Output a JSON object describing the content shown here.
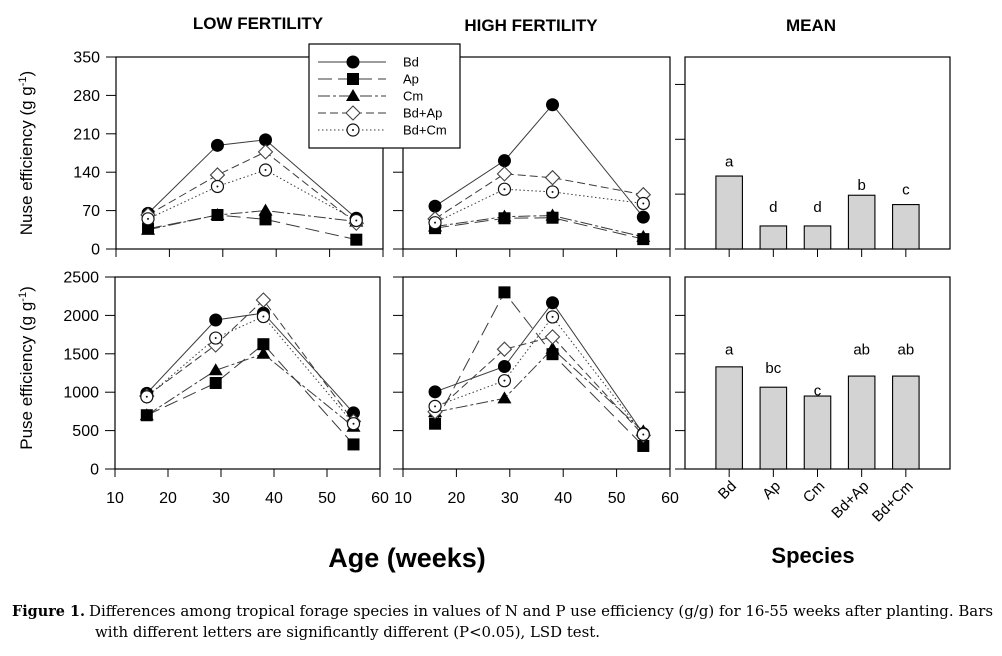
{
  "figure": {
    "caption": {
      "label": "Figure 1.",
      "line1": "Differences among tropical forage species in values of N and P use efficiency (g/g) for 16-55 weeks after planting. Bars",
      "line2": "with different letters are significantly different (P<0.05), LSD test."
    }
  },
  "chart_data": [
    {
      "id": "nuse-low",
      "type": "line",
      "title": "LOW FERTILITY",
      "ylabel": {
        "text": "Nuse efficiency (g g",
        "sup": "-1",
        "suffix": ")"
      },
      "xlabel": "",
      "x": [
        16,
        29,
        38,
        55
      ],
      "xlim": [
        10,
        60
      ],
      "xticks": [
        10,
        20,
        30,
        40,
        50,
        60
      ],
      "xtick_labels": null,
      "ylim": [
        0,
        350
      ],
      "yticks": [
        0,
        70,
        140,
        210,
        280,
        350
      ],
      "ytick_labels": [
        "0",
        "70",
        "140",
        "210",
        "280",
        "350"
      ],
      "grid": false,
      "legend": {
        "placement": "top-right",
        "entries": [
          "Bd",
          "Ap",
          "Cm",
          "Bd+Ap",
          "Bd+Cm"
        ]
      },
      "series": [
        {
          "name": "Bd",
          "marker": "filled-circle",
          "line": "solid",
          "values": [
            65,
            189,
            199,
            56
          ]
        },
        {
          "name": "Ap",
          "marker": "filled-square",
          "line": "long-dash",
          "values": [
            37,
            62,
            54,
            17
          ]
        },
        {
          "name": "Cm",
          "marker": "filled-triangle",
          "line": "dash-dot",
          "values": [
            35,
            62,
            70,
            50
          ]
        },
        {
          "name": "Bd+Ap",
          "marker": "open-diamond",
          "line": "dash",
          "values": [
            62,
            135,
            177,
            47
          ]
        },
        {
          "name": "Bd+Cm",
          "marker": "open-circle-dot",
          "line": "dotted",
          "values": [
            55,
            114,
            144,
            52
          ]
        }
      ]
    },
    {
      "id": "nuse-high",
      "type": "line",
      "title": "HIGH FERTILITY",
      "xlabel": "",
      "x": [
        16,
        29,
        38,
        55
      ],
      "xlim": [
        10,
        60
      ],
      "xticks": [
        10,
        20,
        30,
        40,
        50,
        60
      ],
      "xtick_labels": null,
      "ylim": [
        0,
        350
      ],
      "yticks": [
        0,
        70,
        140,
        210,
        280,
        350
      ],
      "ytick_labels": null,
      "grid": false,
      "series": [
        {
          "name": "Bd",
          "marker": "filled-circle",
          "line": "solid",
          "values": [
            78,
            161,
            263,
            58
          ]
        },
        {
          "name": "Ap",
          "marker": "filled-square",
          "line": "long-dash",
          "values": [
            38,
            56,
            57,
            18
          ]
        },
        {
          "name": "Cm",
          "marker": "filled-triangle",
          "line": "dash-dot",
          "values": [
            41,
            59,
            61,
            22
          ]
        },
        {
          "name": "Bd+Ap",
          "marker": "open-diamond",
          "line": "dash",
          "values": [
            55,
            137,
            130,
            99
          ]
        },
        {
          "name": "Bd+Cm",
          "marker": "open-circle-dot",
          "line": "dotted",
          "values": [
            48,
            109,
            104,
            83
          ]
        }
      ]
    },
    {
      "id": "nuse-mean",
      "type": "bar",
      "title": "MEAN",
      "xlabel": "",
      "categories": [
        "Bd",
        "Ap",
        "Cm",
        "Bd+Ap",
        "Bd+Cm"
      ],
      "category_labels_shown": false,
      "values": [
        133,
        42,
        42,
        98,
        81
      ],
      "letters": [
        "a",
        "d",
        "d",
        "b",
        "c"
      ],
      "letter_y": [
        150,
        67,
        67,
        108,
        99
      ],
      "ylim": [
        0,
        350
      ],
      "yticks": [
        0,
        100,
        200,
        300
      ],
      "ytick_labels": null,
      "bar_color": "#d3d3d3",
      "grid": false
    },
    {
      "id": "puse-low",
      "type": "line",
      "title": "",
      "ylabel": {
        "text": "Puse efficiency (g g",
        "sup": "-1",
        "suffix": ")"
      },
      "xlabel": "Age (weeks)",
      "x": [
        16,
        29,
        38,
        55
      ],
      "xlim": [
        10,
        60
      ],
      "xticks": [
        10,
        20,
        30,
        40,
        50,
        60
      ],
      "xtick_labels": [
        "10",
        "20",
        "30",
        "40",
        "50",
        "60"
      ],
      "ylim": [
        0,
        2500
      ],
      "yticks": [
        0,
        500,
        1000,
        1500,
        2000,
        2500
      ],
      "ytick_labels": [
        "0",
        "500",
        "1000",
        "1500",
        "2000",
        "2500"
      ],
      "grid": false,
      "series": [
        {
          "name": "Bd",
          "marker": "filled-circle",
          "line": "solid",
          "values": [
            985,
            1940,
            2030,
            730
          ]
        },
        {
          "name": "Ap",
          "marker": "filled-square",
          "line": "long-dash",
          "values": [
            700,
            1120,
            1625,
            320
          ]
        },
        {
          "name": "Cm",
          "marker": "filled-triangle",
          "line": "dash-dot",
          "values": [
            700,
            1285,
            1500,
            550
          ]
        },
        {
          "name": "Bd+Ap",
          "marker": "open-diamond",
          "line": "dash",
          "values": [
            950,
            1615,
            2200,
            620
          ]
        },
        {
          "name": "Bd+Cm",
          "marker": "open-circle-dot",
          "line": "dotted",
          "values": [
            940,
            1705,
            1985,
            590
          ]
        }
      ]
    },
    {
      "id": "puse-high",
      "type": "line",
      "title": "",
      "xlabel": "Age (weeks)",
      "x": [
        16,
        29,
        38,
        55
      ],
      "xlim": [
        10,
        60
      ],
      "xticks": [
        10,
        20,
        30,
        40,
        50,
        60
      ],
      "xtick_labels": [
        "10",
        "20",
        "30",
        "40",
        "50",
        "60"
      ],
      "ylim": [
        0,
        2500
      ],
      "yticks": [
        0,
        500,
        1000,
        1500,
        2000,
        2500
      ],
      "ytick_labels": null,
      "grid": false,
      "series": [
        {
          "name": "Bd",
          "marker": "filled-circle",
          "line": "solid",
          "values": [
            1005,
            1335,
            2165,
            460
          ]
        },
        {
          "name": "Ap",
          "marker": "filled-square",
          "line": "long-dash",
          "values": [
            590,
            2300,
            1495,
            300
          ]
        },
        {
          "name": "Cm",
          "marker": "filled-triangle",
          "line": "dash-dot",
          "values": [
            740,
            920,
            1565,
            490
          ]
        },
        {
          "name": "Bd+Ap",
          "marker": "open-diamond",
          "line": "dash",
          "values": [
            745,
            1560,
            1720,
            440
          ]
        },
        {
          "name": "Bd+Cm",
          "marker": "open-circle-dot",
          "line": "dotted",
          "values": [
            815,
            1150,
            1980,
            450
          ]
        }
      ]
    },
    {
      "id": "puse-mean",
      "type": "bar",
      "title": "",
      "xlabel": "Species",
      "categories": [
        "Bd",
        "Ap",
        "Cm",
        "Bd+Ap",
        "Bd+Cm"
      ],
      "category_labels_shown": true,
      "values": [
        1330,
        1065,
        950,
        1210,
        1210
      ],
      "letters": [
        "a",
        "bc",
        "c",
        "ab",
        "ab"
      ],
      "letter_y": [
        1490,
        1250,
        955,
        1490,
        1490
      ],
      "ylim": [
        0,
        2500
      ],
      "yticks": [
        0,
        500,
        1000,
        1500,
        2000
      ],
      "ytick_labels": null,
      "bar_color": "#d3d3d3",
      "grid": false
    }
  ]
}
